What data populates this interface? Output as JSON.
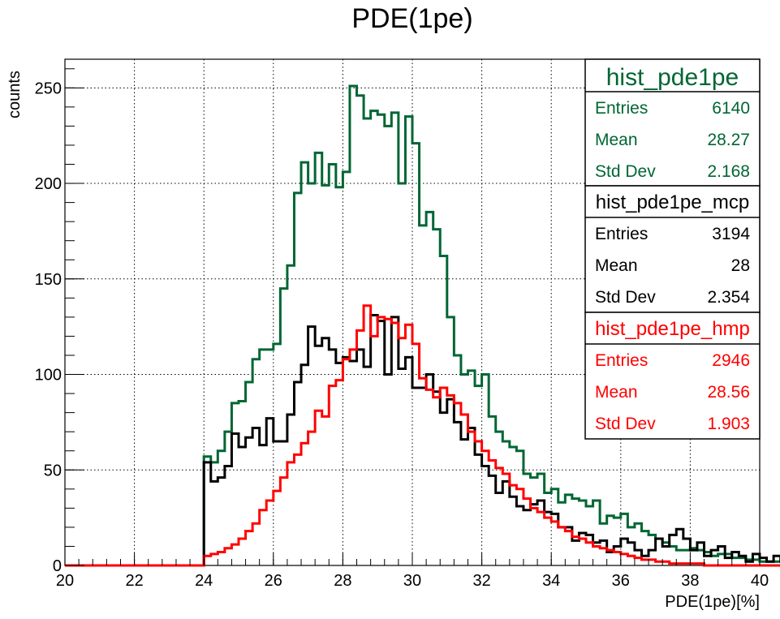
{
  "chart_data": {
    "type": "step-histogram",
    "title": "PDE(1pe)",
    "xlabel": "PDE(1pe)[%]",
    "ylabel": "counts",
    "xlim": [
      20,
      40
    ],
    "ylim": [
      0,
      265
    ],
    "grid": true,
    "bin_width": 0.2,
    "x_ticks": [
      20,
      22,
      24,
      26,
      28,
      30,
      32,
      34,
      36,
      38,
      40
    ],
    "y_ticks": [
      0,
      50,
      100,
      150,
      200,
      250
    ],
    "series": [
      {
        "name": "hist_pde1pe",
        "color": "#006633",
        "entries": "6140",
        "mean": "28.27",
        "std_dev": "2.168",
        "x_start": 24.0,
        "values": [
          57,
          54,
          60,
          70,
          85,
          86,
          96,
          108,
          113,
          113,
          116,
          145,
          157,
          195,
          211,
          200,
          216,
          199,
          210,
          198,
          206,
          251,
          246,
          234,
          238,
          236,
          230,
          237,
          200,
          235,
          221,
          178,
          185,
          176,
          162,
          130,
          110,
          100,
          102,
          94,
          100,
          78,
          70,
          65,
          62,
          60,
          48,
          46,
          48,
          38,
          40,
          33,
          37,
          35,
          34,
          31,
          34,
          22,
          26,
          25,
          27,
          20,
          22,
          18,
          16,
          14,
          12,
          10,
          8,
          8,
          9,
          8,
          7,
          5,
          6,
          6,
          4,
          4,
          3,
          3,
          2,
          2,
          2,
          2,
          1,
          1,
          1,
          1,
          1,
          0,
          0,
          0,
          0,
          0,
          0,
          0,
          0,
          0,
          0,
          0
        ]
      },
      {
        "name": "hist_pde1pe_mcp",
        "color": "#000000",
        "entries": "3194",
        "mean": "28",
        "std_dev": "2.354",
        "x_start": 24.0,
        "values": [
          54,
          44,
          46,
          52,
          69,
          62,
          67,
          72,
          63,
          77,
          65,
          65,
          79,
          96,
          105,
          125,
          115,
          119,
          113,
          106,
          109,
          107,
          113,
          104,
          131,
          128,
          100,
          130,
          103,
          109,
          93,
          93,
          100,
          91,
          80,
          87,
          75,
          66,
          72,
          58,
          52,
          47,
          38,
          44,
          36,
          31,
          29,
          32,
          34,
          28,
          27,
          20,
          20,
          13,
          17,
          16,
          12,
          13,
          7,
          10,
          14,
          12,
          8,
          5,
          8,
          14,
          10,
          16,
          19,
          14,
          8,
          12,
          5,
          8,
          10,
          4,
          7,
          5,
          2,
          6,
          4,
          2,
          5,
          2,
          2,
          0,
          3,
          2,
          1,
          1,
          2,
          0,
          1,
          0,
          2,
          0,
          0,
          0,
          0,
          0
        ]
      },
      {
        "name": "hist_pde1pe_hmp",
        "color": "#ff0000",
        "entries": "2946",
        "mean": "28.56",
        "std_dev": "1.903",
        "x_start": 24.0,
        "values": [
          5,
          6,
          7,
          9,
          11,
          14,
          18,
          22,
          29,
          34,
          39,
          46,
          54,
          58,
          64,
          70,
          81,
          78,
          94,
          97,
          108,
          113,
          123,
          136,
          120,
          130,
          129,
          127,
          119,
          126,
          116,
          98,
          92,
          88,
          93,
          89,
          85,
          79,
          70,
          65,
          60,
          55,
          51,
          48,
          42,
          40,
          35,
          30,
          28,
          25,
          23,
          20,
          18,
          15,
          14,
          12,
          10,
          9,
          8,
          7,
          6,
          5,
          4,
          3,
          3,
          2,
          2,
          1,
          1,
          1,
          1,
          1,
          0,
          0,
          0,
          0,
          0,
          0,
          0,
          0,
          0,
          0,
          0,
          0,
          0,
          0,
          0,
          0,
          0,
          0,
          0,
          0,
          0,
          0,
          0,
          0,
          0,
          0,
          0,
          0
        ]
      }
    ],
    "stats_labels": {
      "entries": "Entries",
      "mean": "Mean",
      "std_dev": "Std Dev"
    },
    "legend_position": "top-right"
  }
}
